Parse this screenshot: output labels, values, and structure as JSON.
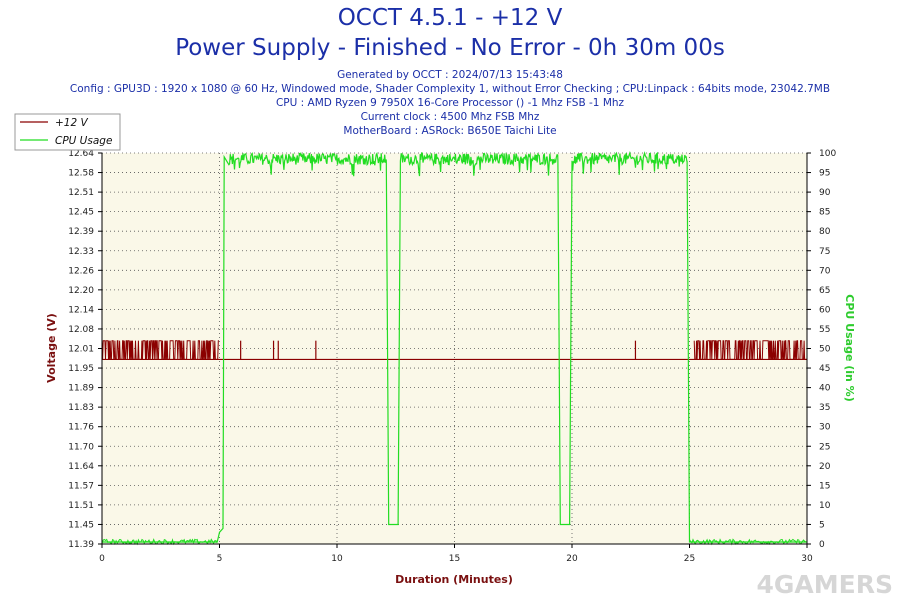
{
  "header": {
    "title_line1": "OCCT 4.5.1 - +12 V",
    "title_line2": "Power Supply - Finished - No Error - 0h 30m 00s",
    "generated": "Generated by OCCT : 2024/07/13 15:43:48",
    "config": "Config : GPU3D : 1920 x 1080 @ 60 Hz, Windowed mode, Shader Complexity 1, without Error Checking ; CPU:Linpack : 64bits mode, 23042.7MB",
    "cpu": "CPU : AMD Ryzen 9 7950X 16-Core Processor () -1 Mhz FSB -1 Mhz",
    "clock": "Current clock : 4500 Mhz FSB  Mhz",
    "motherboard": "MotherBoard : ASRock: B650E Taichi Lite"
  },
  "watermark": "4GAMERS",
  "colors": {
    "voltage": "#8b0000",
    "cpu": "#22dd22",
    "plot_bg": "#faf8e8",
    "title": "#1b2fa8"
  },
  "chart_data": {
    "type": "line",
    "xlabel": "Duration (Minutes)",
    "ylabel_left": "Voltage (V)",
    "ylabel_right": "CPU Usage (in %)",
    "xlim": [
      0,
      30
    ],
    "x_ticks": [
      "0",
      "5",
      "10",
      "15",
      "20",
      "25",
      "30"
    ],
    "x_tick_values": [
      0,
      5,
      10,
      15,
      20,
      25,
      30
    ],
    "ylim_left": [
      11.39,
      12.64
    ],
    "y_left_ticks": [
      "11.39",
      "11.45",
      "11.51",
      "11.57",
      "11.64",
      "11.70",
      "11.76",
      "11.83",
      "11.89",
      "11.95",
      "12.01",
      "12.08",
      "12.14",
      "12.20",
      "12.26",
      "12.33",
      "12.39",
      "12.45",
      "12.51",
      "12.58",
      "12.64"
    ],
    "ylim_right": [
      0,
      100
    ],
    "y_right_ticks": [
      "0",
      "5",
      "10",
      "15",
      "20",
      "25",
      "30",
      "35",
      "40",
      "45",
      "50",
      "55",
      "60",
      "65",
      "70",
      "75",
      "80",
      "85",
      "90",
      "95",
      "100"
    ],
    "grid": true,
    "legend": [
      {
        "label": "+12 V",
        "color": "#8b0000"
      },
      {
        "label": "CPU Usage",
        "color": "#22dd22"
      }
    ],
    "series": [
      {
        "name": "+12 V",
        "axis": "left",
        "baseline": 11.98,
        "fluctuation_high": 12.04,
        "fluctuation_segments": [
          [
            0,
            5.0
          ],
          [
            25.2,
            30
          ]
        ],
        "spikes": [
          5.9,
          7.3,
          7.5,
          9.1,
          22.7
        ],
        "points": [
          [
            0,
            11.98
          ],
          [
            30,
            11.98
          ]
        ]
      },
      {
        "name": "CPU Usage",
        "axis": "right",
        "points": [
          [
            0,
            0.5
          ],
          [
            4.9,
            0.5
          ],
          [
            5.0,
            3
          ],
          [
            5.15,
            4
          ],
          [
            5.2,
            99
          ],
          [
            5.4,
            97
          ],
          [
            12.1,
            98
          ],
          [
            12.2,
            5
          ],
          [
            12.6,
            5
          ],
          [
            12.7,
            98
          ],
          [
            19.4,
            98
          ],
          [
            19.5,
            5
          ],
          [
            19.9,
            5
          ],
          [
            20.0,
            98
          ],
          [
            24.9,
            98
          ],
          [
            25.0,
            0.5
          ],
          [
            30,
            0.5
          ]
        ],
        "noise_segments": [
          [
            5.3,
            12.1
          ],
          [
            12.7,
            19.4
          ],
          [
            20.0,
            24.9
          ]
        ],
        "noise_low": 94,
        "noise_high": 100
      }
    ]
  }
}
